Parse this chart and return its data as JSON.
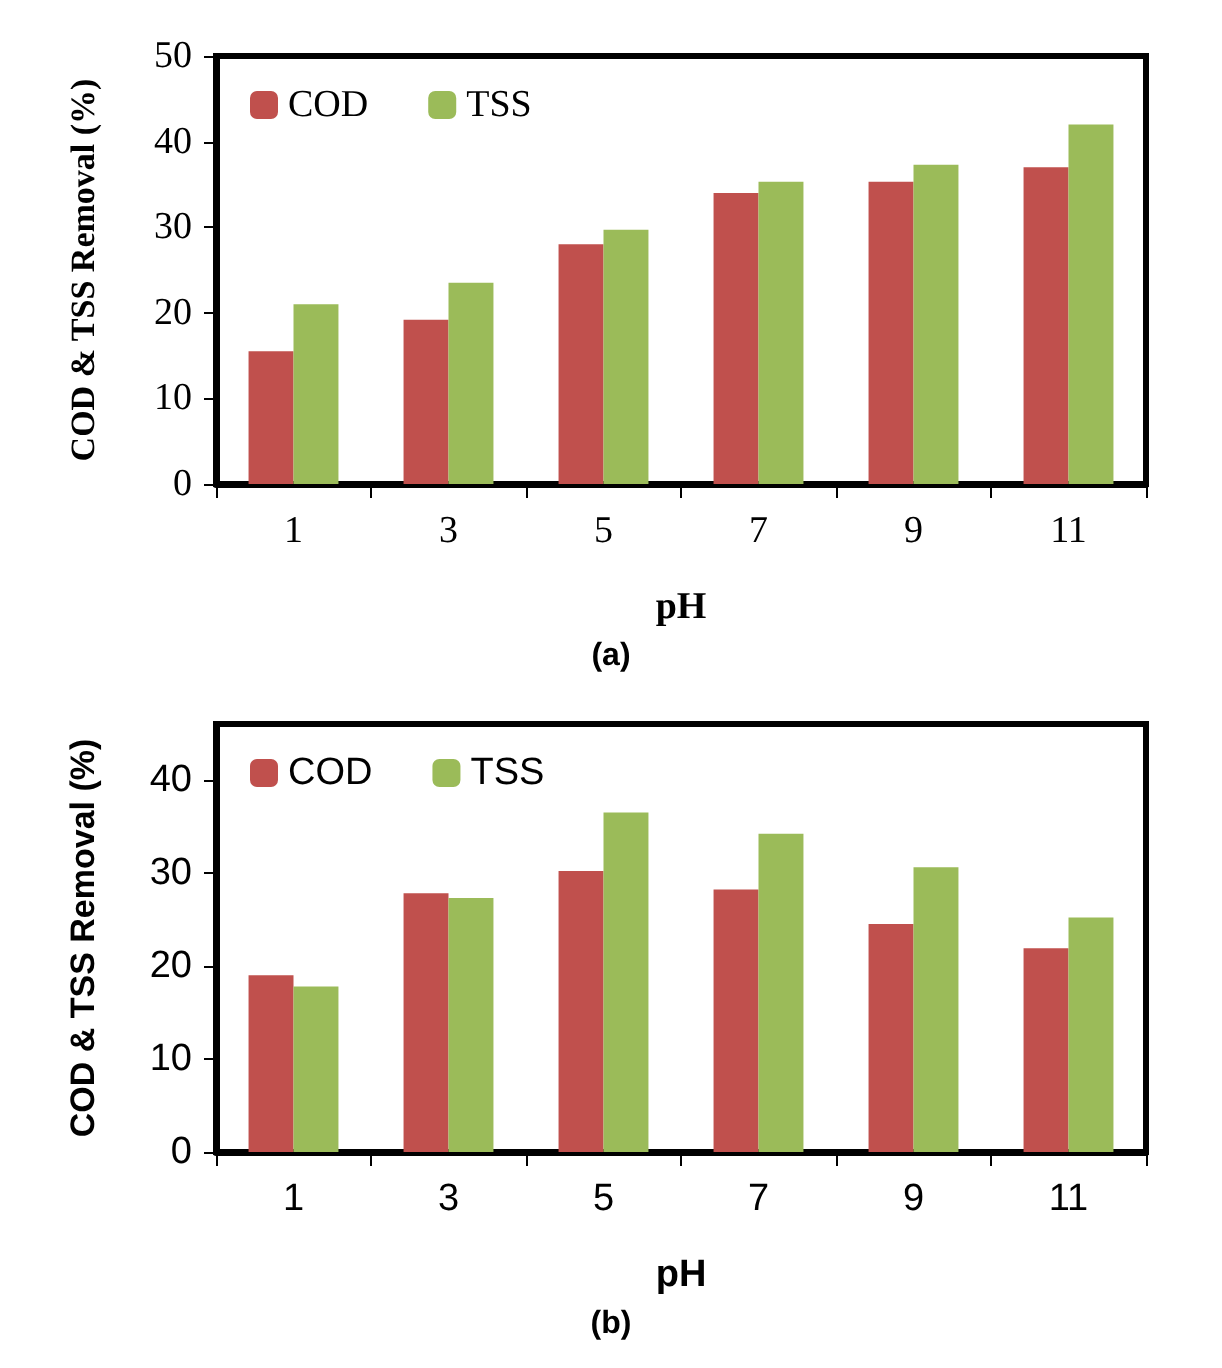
{
  "chart_data": [
    {
      "type": "bar",
      "categories": [
        "1",
        "3",
        "5",
        "7",
        "9",
        "11"
      ],
      "xlabel": "pH",
      "ylabel": "COD & TSS Removal (%)",
      "ylim": [
        0,
        50
      ],
      "yticks": [
        0,
        10,
        20,
        30,
        40,
        50
      ],
      "grid": false,
      "legend": "top left",
      "annotations": [
        "(a)"
      ],
      "series": [
        {
          "name": "COD",
          "color": "#c0504d",
          "values": [
            15.5,
            19.2,
            28,
            34,
            35.3,
            37
          ]
        },
        {
          "name": "TSS",
          "color": "#9bbb59",
          "values": [
            21,
            23.5,
            29.7,
            35.3,
            37.3,
            42
          ]
        }
      ]
    },
    {
      "type": "bar",
      "categories": [
        "1",
        "3",
        "5",
        "7",
        "9",
        "11"
      ],
      "xlabel": "pH",
      "ylabel": "COD & TSS Removal (%)",
      "ylim": [
        0,
        46
      ],
      "yticks": [
        0,
        10,
        20,
        30,
        40
      ],
      "grid": false,
      "legend": "top left",
      "annotations": [
        "(b)"
      ],
      "series": [
        {
          "name": "COD",
          "color": "#c0504d",
          "values": [
            19,
            27.8,
            30.2,
            28.2,
            24.5,
            21.9
          ]
        },
        {
          "name": "TSS",
          "color": "#9bbb59",
          "values": [
            17.8,
            27.3,
            36.5,
            34.2,
            30.6,
            25.2
          ]
        }
      ]
    }
  ]
}
